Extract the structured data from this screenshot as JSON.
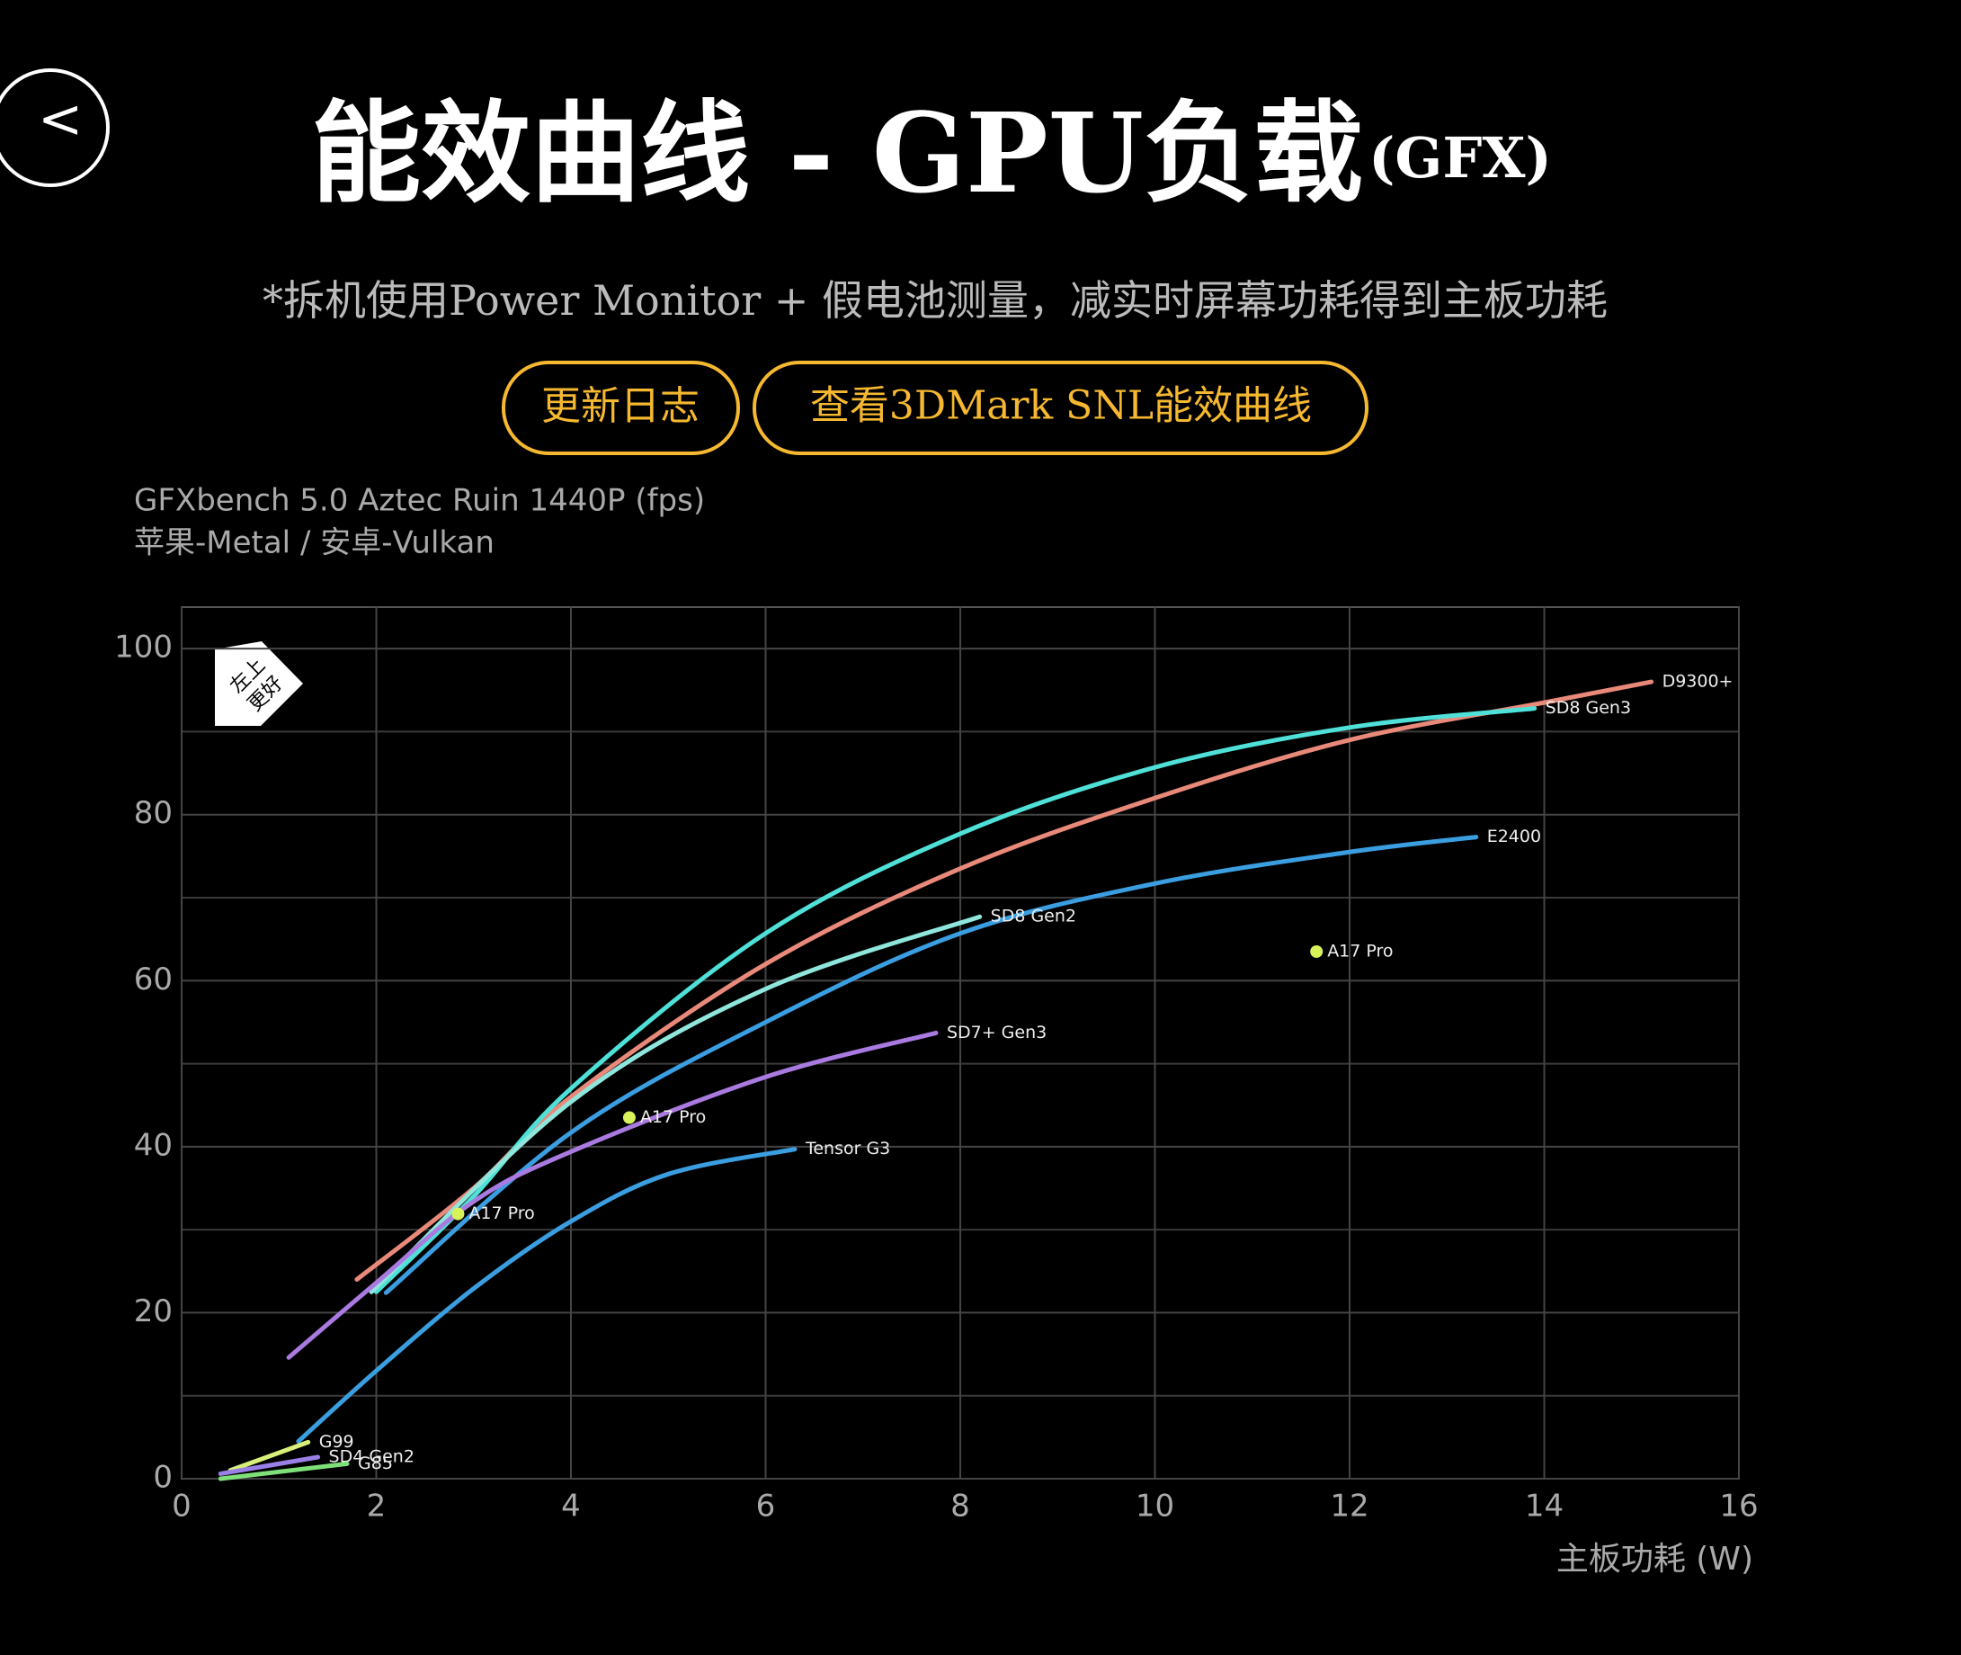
{
  "header": {
    "back": "<",
    "title": "能效曲线 - GPU负载",
    "title_suffix": "(GFX)",
    "note": "*拆机使用Power Monitor + 假电池测量，减实时屏幕功耗得到主板功耗",
    "buttons": [
      "更新日志",
      "查看3DMark SNL能效曲线"
    ]
  },
  "chart_data": {
    "type": "line",
    "subtitle": [
      "GFXbench 5.0 Aztec Ruin 1440P (fps)",
      "苹果-Metal / 安卓-Vulkan"
    ],
    "annotation": [
      "左上",
      "更好"
    ],
    "xlabel": "主板功耗 (W)",
    "xlim": [
      0,
      16
    ],
    "xticks": [
      0,
      2,
      4,
      6,
      8,
      10,
      12,
      14,
      16
    ],
    "ylim": [
      0,
      105
    ],
    "yticks": [
      0,
      20,
      40,
      60,
      80,
      100
    ],
    "yminor": [
      10,
      30,
      50,
      70,
      90
    ],
    "grid": true,
    "series": [
      {
        "name": "D9300+",
        "color": "#e8897a",
        "x": [
          1.8,
          3,
          4,
          6,
          8,
          10,
          12,
          14,
          15.1
        ],
        "values": [
          24,
          35,
          46,
          62,
          73.5,
          82,
          89,
          93.5,
          96
        ]
      },
      {
        "name": "SD8 Gen3",
        "color": "#4fe0d8",
        "x": [
          2,
          3,
          4,
          6,
          8,
          10,
          12,
          13.9
        ],
        "values": [
          22.5,
          34,
          47,
          65.7,
          77.7,
          85.7,
          90.5,
          92.8
        ]
      },
      {
        "name": "E2400",
        "color": "#3a9ee0",
        "x": [
          2.1,
          4,
          6,
          8,
          10,
          12,
          13.3
        ],
        "values": [
          22.4,
          41.7,
          55,
          65.7,
          71.7,
          75.5,
          77.3
        ]
      },
      {
        "name": "SD8 Gen2",
        "color": "#8fe6dc",
        "x": [
          1.95,
          4,
          6,
          8.2
        ],
        "values": [
          22.5,
          45.4,
          59,
          67.7
        ]
      },
      {
        "name": "SD7+ Gen3",
        "color": "#a97ae0",
        "x": [
          1.1,
          2,
          3,
          4,
          6,
          7.75
        ],
        "values": [
          14.6,
          23.6,
          33.4,
          39.4,
          48.4,
          53.7
        ]
      },
      {
        "name": "Tensor G3",
        "color": "#3a9ee0",
        "x": [
          1.2,
          2,
          3,
          4,
          5,
          6.3
        ],
        "values": [
          4.5,
          13,
          22.9,
          31,
          36.7,
          39.7
        ]
      },
      {
        "name": "G99",
        "color": "#d8f07a",
        "x": [
          0.5,
          1.3
        ],
        "values": [
          1,
          4.4
        ]
      },
      {
        "name": "SD4 Gen2",
        "color": "#9a80e6",
        "x": [
          0.4,
          1.4
        ],
        "values": [
          0.6,
          2.6
        ]
      },
      {
        "name": "G85",
        "color": "#7fe07a",
        "x": [
          0.4,
          1.7
        ],
        "values": [
          0,
          1.8
        ]
      },
      {
        "name": "A17 Pro",
        "color": "#d9f25a",
        "type": "scatter",
        "x": [
          2.84,
          4.6,
          11.66
        ],
        "values": [
          31.9,
          43.5,
          63.5
        ]
      }
    ]
  }
}
